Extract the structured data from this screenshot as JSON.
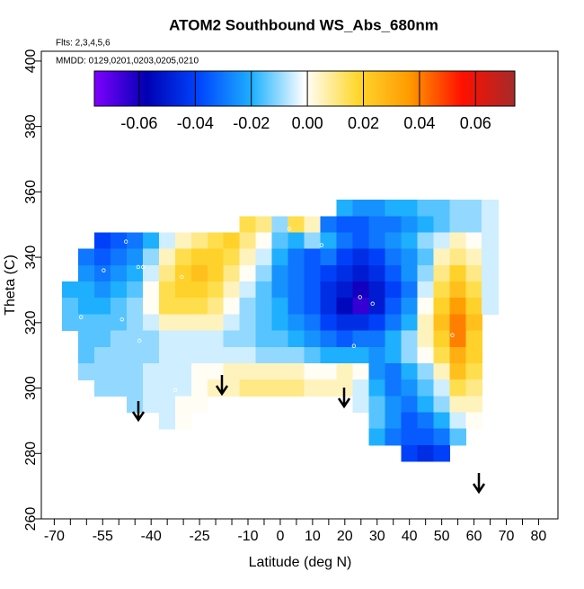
{
  "chart_data": {
    "type": "heatmap",
    "title": "ATOM2 Southbound WS_Abs_680nm",
    "annotations": [
      "Flts: 2,3,4,5,6",
      "MMDD: 0129,0201,0203,0205,0210"
    ],
    "xlabel": "Latitude (deg N)",
    "ylabel": "Theta (C)",
    "xlim": [
      -74,
      86
    ],
    "xticks": [
      -70,
      -55,
      -40,
      -25,
      -10,
      0,
      10,
      20,
      30,
      40,
      50,
      60,
      70,
      80
    ],
    "x_minor_ticks": [
      -65,
      -60,
      -50,
      -45,
      -35,
      -30,
      -20,
      -15,
      -5,
      5,
      15,
      25,
      35,
      45,
      55,
      65,
      75
    ],
    "ylim": [
      260,
      403
    ],
    "yticks": [
      260,
      280,
      300,
      320,
      340,
      360,
      380,
      400
    ],
    "zlim": [
      -0.076,
      0.074
    ],
    "zticks": [
      -0.06,
      -0.04,
      -0.02,
      {
        "value": 0,
        "label": "0.00"
      },
      0.02,
      0.04,
      0.06
    ],
    "colorscale": [
      "#7f00ff",
      "#0000b4",
      "#0046ff",
      "#1eb0ff",
      "#ffffff",
      "#ffd830",
      "#ff9a00",
      "#ff1000",
      "#a52a2a"
    ],
    "x": [
      -65,
      -60,
      -55,
      -50,
      -45,
      -40,
      -35,
      -30,
      -25,
      -20,
      -15,
      -10,
      -5,
      0,
      5,
      10,
      15,
      20,
      25,
      30,
      35,
      40,
      45,
      50,
      55,
      60,
      65
    ],
    "y": [
      355,
      350,
      345,
      340,
      335,
      330,
      325,
      320,
      315,
      310,
      305,
      300,
      295,
      290,
      285,
      280
    ],
    "z": [
      [
        null,
        null,
        null,
        null,
        null,
        null,
        null,
        null,
        null,
        null,
        null,
        null,
        null,
        null,
        null,
        null,
        null,
        -0.02,
        -0.025,
        -0.025,
        -0.02,
        -0.02,
        -0.015,
        -0.015,
        -0.01,
        -0.01,
        -0.005
      ],
      [
        null,
        null,
        null,
        null,
        null,
        null,
        null,
        null,
        null,
        null,
        null,
        0.015,
        0.01,
        -0.01,
        0.015,
        0.005,
        -0.03,
        -0.035,
        -0.035,
        -0.03,
        -0.03,
        -0.025,
        -0.02,
        -0.015,
        -0.01,
        -0.01,
        -0.005
      ],
      [
        null,
        null,
        -0.04,
        -0.035,
        -0.03,
        -0.02,
        -0.005,
        0.005,
        0.01,
        0.015,
        0.02,
        0.01,
        0,
        -0.015,
        -0.02,
        -0.01,
        -0.02,
        -0.03,
        -0.035,
        -0.03,
        -0.025,
        -0.02,
        -0.01,
        -0.005,
        0.005,
        0,
        -0.005
      ],
      [
        null,
        -0.03,
        -0.035,
        -0.03,
        -0.025,
        -0.01,
        0.005,
        0.015,
        0.02,
        0.02,
        0.015,
        0.005,
        -0.005,
        -0.02,
        -0.03,
        -0.035,
        -0.03,
        -0.04,
        -0.045,
        -0.04,
        -0.03,
        -0.025,
        -0.015,
        0.005,
        0.01,
        0.005,
        -0.005
      ],
      [
        null,
        -0.025,
        -0.03,
        -0.025,
        -0.02,
        -0.005,
        0.01,
        0.02,
        0.025,
        0.02,
        0.01,
        0,
        -0.01,
        -0.025,
        -0.03,
        -0.035,
        -0.04,
        -0.045,
        -0.05,
        -0.045,
        -0.035,
        -0.025,
        -0.01,
        0.01,
        0.02,
        0.01,
        -0.005
      ],
      [
        -0.02,
        -0.02,
        -0.025,
        -0.02,
        -0.015,
        0,
        0.015,
        0.02,
        0.02,
        0.015,
        0.005,
        -0.005,
        -0.015,
        -0.025,
        -0.03,
        -0.035,
        -0.045,
        -0.05,
        -0.06,
        -0.05,
        -0.04,
        -0.03,
        -0.005,
        0.015,
        0.025,
        0.015,
        -0.005
      ],
      [
        -0.015,
        -0.02,
        -0.02,
        -0.015,
        -0.01,
        0,
        0.015,
        0.015,
        0.015,
        0.01,
        0,
        -0.01,
        -0.015,
        -0.02,
        -0.03,
        -0.035,
        -0.045,
        -0.055,
        -0.065,
        -0.05,
        -0.035,
        -0.025,
        0,
        0.02,
        0.035,
        0.02,
        -0.005
      ],
      [
        -0.015,
        -0.015,
        -0.015,
        -0.015,
        -0.01,
        -0.005,
        0.005,
        0.005,
        0.005,
        0.005,
        -0.005,
        -0.01,
        -0.015,
        -0.02,
        -0.025,
        -0.03,
        -0.04,
        -0.045,
        -0.045,
        -0.04,
        -0.03,
        -0.02,
        0.005,
        0.025,
        0.04,
        0.025,
        null
      ],
      [
        null,
        -0.015,
        -0.015,
        -0.01,
        -0.01,
        -0.01,
        -0.005,
        -0.005,
        -0.005,
        -0.005,
        -0.01,
        -0.01,
        -0.015,
        -0.015,
        -0.02,
        -0.025,
        -0.03,
        -0.035,
        -0.03,
        -0.03,
        -0.02,
        -0.01,
        0.005,
        0.02,
        0.04,
        0.02,
        null
      ],
      [
        null,
        -0.015,
        -0.01,
        -0.01,
        -0.01,
        -0.01,
        -0.005,
        -0.005,
        -0.005,
        -0.005,
        -0.005,
        -0.005,
        -0.01,
        -0.01,
        -0.01,
        -0.015,
        -0.02,
        -0.02,
        -0.02,
        -0.025,
        -0.02,
        -0.01,
        0,
        0.015,
        0.03,
        0.02,
        null
      ],
      [
        null,
        -0.01,
        -0.01,
        -0.01,
        -0.01,
        -0.005,
        -0.005,
        -0.005,
        0,
        0,
        0.005,
        0.005,
        0.005,
        0.005,
        0.005,
        0,
        0,
        0.005,
        0,
        -0.025,
        -0.03,
        -0.02,
        -0.01,
        0.005,
        0.025,
        0.015,
        null
      ],
      [
        null,
        null,
        -0.01,
        -0.01,
        -0.01,
        -0.005,
        -0.005,
        -0.005,
        0,
        0.005,
        0.005,
        0.01,
        0.01,
        0.01,
        0.01,
        0.005,
        0.005,
        0.005,
        -0.005,
        -0.02,
        -0.03,
        -0.025,
        -0.015,
        -0.005,
        0.015,
        0.01,
        null
      ],
      [
        null,
        null,
        null,
        null,
        -0.01,
        -0.005,
        -0.005,
        0,
        0,
        null,
        null,
        null,
        null,
        null,
        null,
        null,
        null,
        null,
        -0.005,
        -0.015,
        -0.025,
        -0.03,
        -0.02,
        -0.01,
        0.005,
        0.005,
        null
      ],
      [
        null,
        null,
        null,
        null,
        null,
        null,
        -0.005,
        0,
        null,
        null,
        null,
        null,
        null,
        null,
        null,
        null,
        null,
        null,
        null,
        -0.015,
        -0.025,
        -0.035,
        -0.03,
        -0.02,
        -0.005,
        0,
        null
      ],
      [
        null,
        null,
        null,
        null,
        null,
        null,
        null,
        null,
        null,
        null,
        null,
        null,
        null,
        null,
        null,
        null,
        null,
        null,
        null,
        -0.02,
        -0.03,
        -0.035,
        -0.035,
        -0.03,
        -0.015,
        null,
        null
      ],
      [
        null,
        null,
        null,
        null,
        null,
        null,
        null,
        null,
        null,
        null,
        null,
        null,
        null,
        null,
        null,
        null,
        null,
        null,
        null,
        null,
        null,
        -0.04,
        -0.045,
        -0.04,
        null,
        null,
        null
      ]
    ],
    "points": {
      "lat": [
        -47.8,
        -54.7,
        -61.7,
        -49,
        -44,
        -42.5,
        -30.5,
        -43.6,
        -32.5,
        2.8,
        12.8,
        24.7,
        28.6,
        22.8,
        53.3
      ],
      "theta": [
        344.8,
        336,
        321.7,
        321,
        337,
        337,
        334,
        314.5,
        299.4,
        348.7,
        343.7,
        327.8,
        325.8,
        312.9,
        316.2
      ],
      "color": "#ffffff"
    }
  }
}
